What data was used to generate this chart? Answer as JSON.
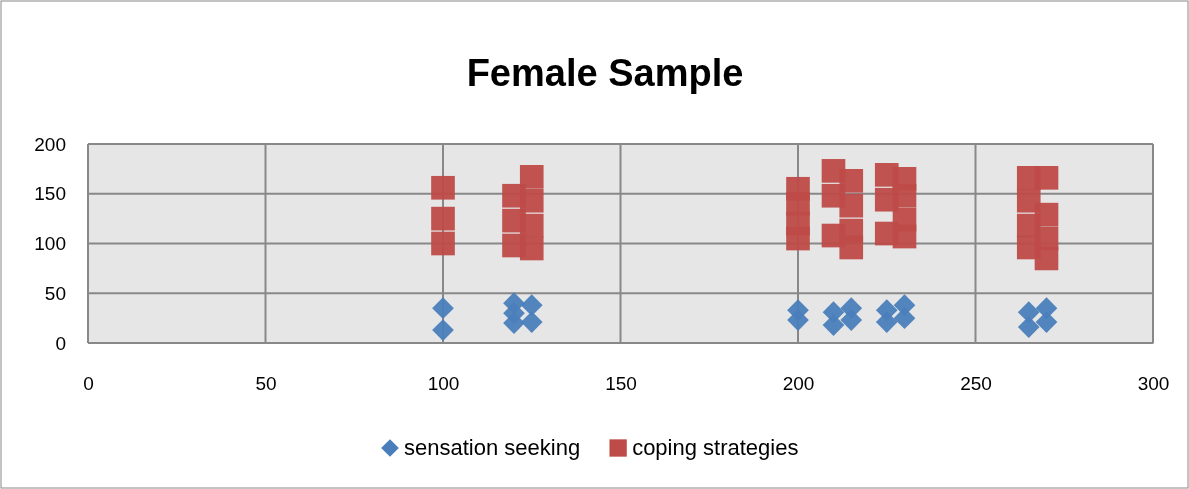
{
  "chart_data": {
    "type": "scatter",
    "title": "Female Sample",
    "xlim": [
      0,
      300
    ],
    "xticks": [
      0,
      50,
      100,
      150,
      200,
      250,
      300
    ],
    "ylim": [
      0,
      200
    ],
    "yticks": [
      0,
      50,
      100,
      150,
      200
    ],
    "grid": true,
    "legend": "bottom",
    "series": [
      {
        "name": "sensation seeking",
        "color": "#4a7ebb",
        "marker": "diamond",
        "x": [
          100,
          100,
          120,
          120,
          120,
          125,
          125,
          200,
          200,
          210,
          210,
          215,
          215,
          225,
          225,
          230,
          230,
          265,
          265,
          270,
          270
        ],
        "values": [
          35,
          13,
          40,
          30,
          20,
          38,
          21,
          33,
          23,
          31,
          18,
          35,
          23,
          33,
          21,
          38,
          25,
          31,
          16,
          35,
          21
        ]
      },
      {
        "name": "coping strategies",
        "color": "#be4b48",
        "marker": "square",
        "x": [
          100,
          100,
          100,
          120,
          120,
          120,
          125,
          125,
          125,
          125,
          200,
          200,
          200,
          200,
          210,
          210,
          210,
          215,
          215,
          215,
          215,
          225,
          225,
          225,
          230,
          230,
          230,
          230,
          265,
          265,
          265,
          265,
          270,
          270,
          270,
          270
        ],
        "values": [
          156,
          125,
          100,
          148,
          123,
          98,
          167,
          143,
          118,
          95,
          155,
          140,
          120,
          105,
          173,
          148,
          108,
          163,
          138,
          113,
          96,
          169,
          144,
          110,
          165,
          148,
          124,
          107,
          166,
          143,
          118,
          96,
          166,
          129,
          105,
          85
        ]
      }
    ]
  }
}
